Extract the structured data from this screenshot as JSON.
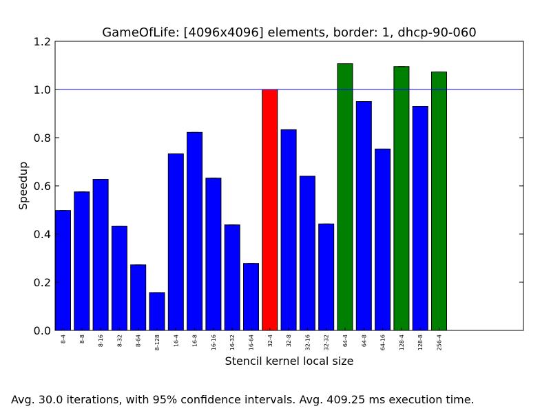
{
  "chart_data": {
    "type": "bar",
    "title": "GameOfLife: [4096x4096] elements, border: 1, dhcp-90-060",
    "xlabel": "Stencil kernel local size",
    "ylabel": "Speedup",
    "ylim": [
      0.0,
      1.2
    ],
    "yticks": [
      "0.0",
      "0.2",
      "0.4",
      "0.6",
      "0.8",
      "1.0",
      "1.2"
    ],
    "reference_line": 1.0,
    "grid": false,
    "categories": [
      "8-4",
      "8-8",
      "8-16",
      "8-32",
      "8-64",
      "8-128",
      "16-4",
      "16-8",
      "16-16",
      "16-32",
      "16-64",
      "32-4",
      "32-8",
      "32-16",
      "32-32",
      "64-4",
      "64-8",
      "64-16",
      "128-4",
      "128-8",
      "256-4"
    ],
    "values": [
      0.498,
      0.575,
      0.627,
      0.433,
      0.272,
      0.157,
      0.733,
      0.822,
      0.632,
      0.438,
      0.278,
      1.0,
      0.833,
      0.64,
      0.442,
      1.107,
      0.95,
      0.753,
      1.095,
      0.93,
      1.073
    ],
    "bar_colors": [
      "#0000ff",
      "#0000ff",
      "#0000ff",
      "#0000ff",
      "#0000ff",
      "#0000ff",
      "#0000ff",
      "#0000ff",
      "#0000ff",
      "#0000ff",
      "#0000ff",
      "#ff0000",
      "#0000ff",
      "#0000ff",
      "#0000ff",
      "#008000",
      "#0000ff",
      "#0000ff",
      "#008000",
      "#0000ff",
      "#008000"
    ],
    "reference_color": "#0000ff",
    "caption": "Avg. 30.0 iterations, with 95% confidence intervals. Avg. 409.25 ms execution time."
  }
}
